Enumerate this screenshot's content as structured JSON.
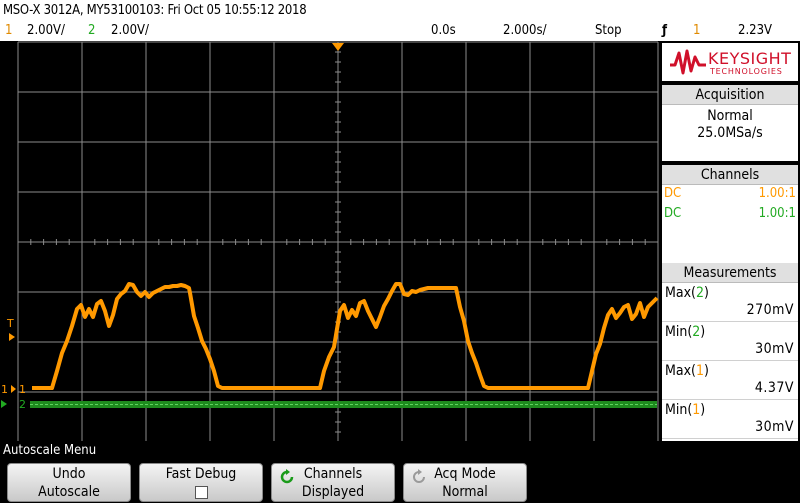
{
  "title_bar": {
    "text": "MSO-X 3012A, MY53100103: Fri Oct 05 10:55:12 2018"
  },
  "status_bar": {
    "ch1_num": "1",
    "ch1_scale": "2.00V/",
    "ch2_num": "2",
    "ch2_scale": "2.00V/",
    "delay": "0.0s",
    "timebase": "2.000s/",
    "run_state": "Stop",
    "trigger_symbol": "ƒ",
    "trigger_source": "1",
    "trigger_level": "2.23V"
  },
  "logo": {
    "brand": "KEYSIGHT",
    "sub": "TECHNOLOGIES"
  },
  "acquisition": {
    "header": "Acquisition",
    "mode": "Normal",
    "rate": "25.0MSa/s"
  },
  "channels": {
    "header": "Channels",
    "rows": [
      {
        "coupling": "DC",
        "probe": "1.00:1",
        "color": "#ff9900"
      },
      {
        "coupling": "DC",
        "probe": "1.00:1",
        "color": "#22aa22"
      }
    ]
  },
  "measurements": {
    "header": "Measurements",
    "items": [
      {
        "label": "Max",
        "channel": "2",
        "value": "270mV"
      },
      {
        "label": "Min",
        "channel": "2",
        "value": "30mV"
      },
      {
        "label": "Max",
        "channel": "1",
        "value": "4.37V"
      },
      {
        "label": "Min",
        "channel": "1",
        "value": "30mV"
      }
    ]
  },
  "grid_markers": {
    "trigger_level_label": "T",
    "ch1_ground_label": "1",
    "ch2_ground_label": "2"
  },
  "menu": {
    "title": "Autoscale Menu",
    "keys": [
      {
        "line1": "Undo",
        "line2": "Autoscale"
      },
      {
        "line1": "Fast Debug",
        "line2": ""
      },
      {
        "line1": "Channels",
        "line2": "Displayed"
      },
      {
        "line1": "Acq Mode",
        "line2": "Normal"
      }
    ]
  },
  "colors": {
    "ch1": "#ff9900",
    "ch2": "#22aa22",
    "grid": "#8c8c8c"
  }
}
